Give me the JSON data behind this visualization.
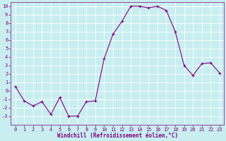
{
  "x": [
    0,
    1,
    2,
    3,
    4,
    5,
    6,
    7,
    8,
    9,
    10,
    11,
    12,
    13,
    14,
    15,
    16,
    17,
    18,
    19,
    20,
    21,
    22,
    23
  ],
  "y": [
    0.5,
    -1.2,
    -1.8,
    -1.3,
    -2.8,
    -0.8,
    -3.0,
    -3.0,
    -1.3,
    -1.2,
    3.8,
    6.7,
    8.2,
    10.0,
    10.0,
    9.8,
    10.0,
    9.5,
    7.0,
    3.0,
    1.8,
    3.2,
    3.3,
    2.1
  ],
  "line_color": "#800080",
  "marker": "+",
  "marker_size": 3,
  "marker_lw": 0.8,
  "line_width": 0.8,
  "bg_color": "#c8eef0",
  "grid_color": "#ffffff",
  "xlabel": "Windchill (Refroidissement éolien,°C)",
  "xlabel_color": "#800080",
  "tick_color": "#800080",
  "spine_color": "#800080",
  "ylim": [
    -4,
    10.5
  ],
  "xlim": [
    -0.5,
    23.5
  ],
  "yticks": [
    -3,
    -2,
    -1,
    0,
    1,
    2,
    3,
    4,
    5,
    6,
    7,
    8,
    9,
    10
  ],
  "xticks": [
    0,
    1,
    2,
    3,
    4,
    5,
    6,
    7,
    8,
    9,
    10,
    11,
    12,
    13,
    14,
    15,
    16,
    17,
    18,
    19,
    20,
    21,
    22,
    23
  ],
  "tick_fontsize": 5,
  "xlabel_fontsize": 5.5,
  "xlabel_fontweight": "bold"
}
